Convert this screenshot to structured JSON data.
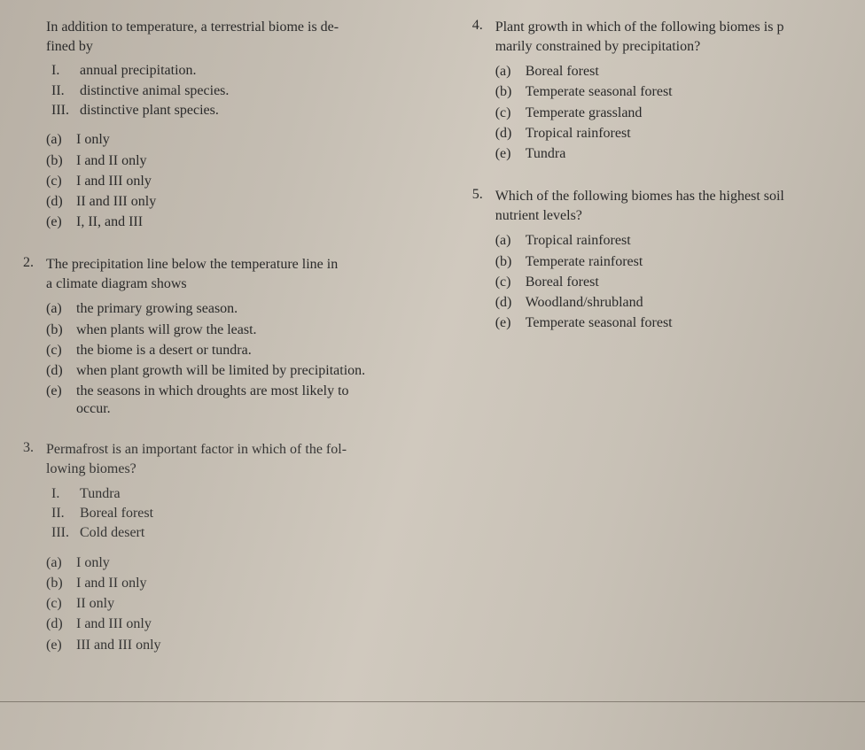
{
  "font": {
    "family": "Georgia, serif",
    "size_body": 15,
    "color": "#2a2a2a"
  },
  "background": {
    "gradient": [
      "#b8b0a5",
      "#c4bdb2",
      "#d0c9be",
      "#c8c1b6",
      "#b5aea3"
    ]
  },
  "left_column": {
    "q1": {
      "number": "",
      "stem_line1": "In addition to temperature, a terrestrial biome is de-",
      "stem_line2": "fined by",
      "roman": [
        {
          "label": "I.",
          "text": "annual precipitation."
        },
        {
          "label": "II.",
          "text": "distinctive animal species."
        },
        {
          "label": "III.",
          "text": "distinctive plant species."
        }
      ],
      "choices": [
        {
          "label": "(a)",
          "text": "I only"
        },
        {
          "label": "(b)",
          "text": "I and II only"
        },
        {
          "label": "(c)",
          "text": "I and III only"
        },
        {
          "label": "(d)",
          "text": "II and III only"
        },
        {
          "label": "(e)",
          "text": "I, II, and III"
        }
      ]
    },
    "q2": {
      "number": "2.",
      "stem_line1": "The precipitation line below the temperature line in",
      "stem_line2": "a climate diagram shows",
      "choices": [
        {
          "label": "(a)",
          "text": "the primary growing season."
        },
        {
          "label": "(b)",
          "text": "when plants will grow the least."
        },
        {
          "label": "(c)",
          "text": "the biome is a desert or tundra."
        },
        {
          "label": "(d)",
          "text": "when plant growth will be limited by precipitation."
        },
        {
          "label": "(e)",
          "text": "the seasons in which droughts are most likely to"
        }
      ],
      "choice_e_cont": "occur."
    },
    "q3": {
      "number": "3.",
      "stem_line1": "Permafrost is an important factor in which of the fol-",
      "stem_line2": "lowing biomes?",
      "roman": [
        {
          "label": "I.",
          "text": "Tundra"
        },
        {
          "label": "II.",
          "text": "Boreal forest"
        },
        {
          "label": "III.",
          "text": "Cold desert"
        }
      ],
      "choices": [
        {
          "label": "(a)",
          "text": "I only"
        },
        {
          "label": "(b)",
          "text": "I and II only"
        },
        {
          "label": "(c)",
          "text": "II only"
        },
        {
          "label": "(d)",
          "text": "I and III only"
        },
        {
          "label": "(e)",
          "text": "III and III only"
        }
      ]
    }
  },
  "right_column": {
    "q4": {
      "number": "4.",
      "stem_line1": "Plant growth in which of the following biomes is p",
      "stem_line2": "marily constrained by precipitation?",
      "choices": [
        {
          "label": "(a)",
          "text": "Boreal forest"
        },
        {
          "label": "(b)",
          "text": "Temperate seasonal forest"
        },
        {
          "label": "(c)",
          "text": "Temperate grassland"
        },
        {
          "label": "(d)",
          "text": "Tropical rainforest"
        },
        {
          "label": "(e)",
          "text": "Tundra"
        }
      ]
    },
    "q5": {
      "number": "5.",
      "stem_line1": "Which of the following biomes has the highest soil",
      "stem_line2": "nutrient levels?",
      "choices": [
        {
          "label": "(a)",
          "text": "Tropical rainforest"
        },
        {
          "label": "(b)",
          "text": "Temperate rainforest"
        },
        {
          "label": "(c)",
          "text": "Boreal forest"
        },
        {
          "label": "(d)",
          "text": "Woodland/shrubland"
        },
        {
          "label": "(e)",
          "text": "Temperate seasonal forest"
        }
      ]
    }
  }
}
